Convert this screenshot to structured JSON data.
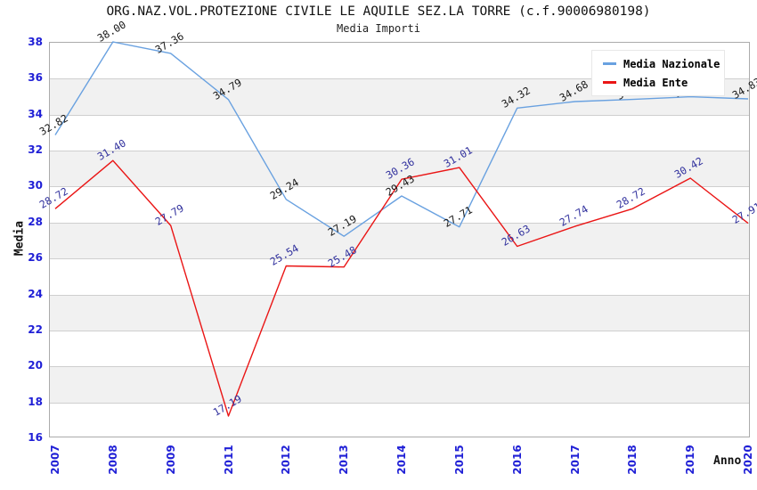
{
  "chart_data": {
    "type": "line",
    "title": "ORG.NAZ.VOL.PROTEZIONE CIVILE LE AQUILE SEZ.LA TORRE (c.f.90006980198)",
    "subtitle": "Media Importi",
    "xlabel": "Anno",
    "ylabel": "Media",
    "ylim": [
      16,
      38
    ],
    "ytick_step": 2,
    "ytick_labels": [
      "38",
      "36",
      "34",
      "32",
      "30",
      "28",
      "26",
      "24",
      "22",
      "20",
      "18",
      "16"
    ],
    "grid": "horizontal",
    "legend_position": "top-right",
    "categories": [
      "2007",
      "2008",
      "2009",
      "2011",
      "2012",
      "2013",
      "2014",
      "2015",
      "2016",
      "2017",
      "2018",
      "2019",
      "2020"
    ],
    "series": [
      {
        "name": "Media Nazionale",
        "color": "#69a1e0",
        "label_color": "#161616",
        "values": [
          32.82,
          38.0,
          37.36,
          34.79,
          29.24,
          27.19,
          29.43,
          27.71,
          34.32,
          34.68,
          34.8,
          34.95,
          34.83
        ],
        "point_labels": [
          "32.82",
          "38.00",
          "37.36",
          "34.79",
          "29.24",
          "27.19",
          "29.43",
          "27.71",
          "34.32",
          "34.68",
          "34.80",
          "34.95",
          "34.83"
        ]
      },
      {
        "name": "Media Ente",
        "color": "#ea1515",
        "label_color": "#30309d",
        "values": [
          28.72,
          31.4,
          27.79,
          17.19,
          25.54,
          25.48,
          30.36,
          31.01,
          26.63,
          27.74,
          28.72,
          30.42,
          27.91
        ],
        "point_labels": [
          "28.72",
          "31.40",
          "27.79",
          "17.19",
          "25.54",
          "25.48",
          "30.36",
          "31.01",
          "26.63",
          "27.74",
          "28.72",
          "30.42",
          "27.91"
        ]
      }
    ],
    "colors": {
      "axis_tick_label": "#1f1fd6",
      "band_alt": "#f1f1f1",
      "gridline": "#cfcfcf",
      "plot_border": "#ababab",
      "title_text": "#111111"
    }
  }
}
